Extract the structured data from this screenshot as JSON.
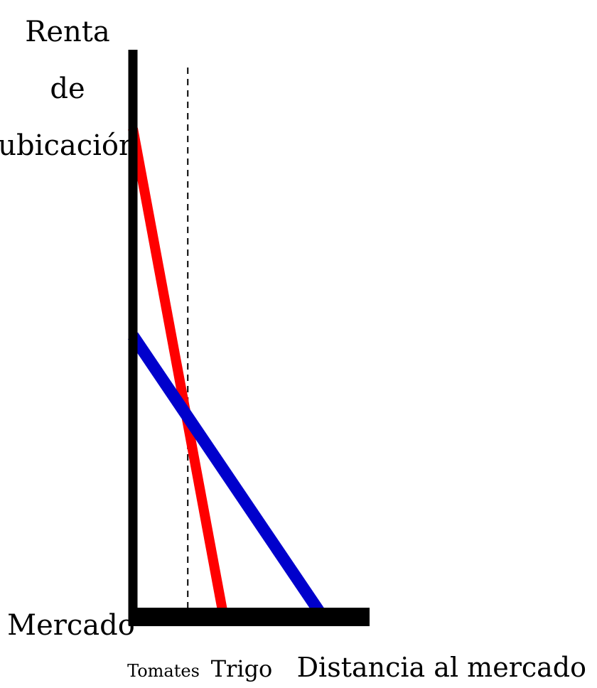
{
  "chart_data": {
    "type": "line",
    "title": "",
    "ylabel_lines": [
      "Renta",
      "de",
      "ubicación"
    ],
    "xlabel": "Distancia al mercado",
    "origin_label": "Mercado",
    "x_tick_labels": [
      "Tomates",
      "Trigo"
    ],
    "y_tick_labels": [],
    "grid": false,
    "legend": "none",
    "xlim": [
      0,
      10
    ],
    "ylim": [
      0,
      10
    ],
    "series": [
      {
        "color": "#ff0000",
        "points": [
          [
            0,
            9.9
          ],
          [
            4.3,
            0
          ]
        ]
      },
      {
        "color": "#0000cc",
        "points": [
          [
            0,
            5.7
          ],
          [
            9.0,
            0
          ]
        ]
      }
    ],
    "reference_line": {
      "x": 2.6,
      "style": "dashed",
      "color": "#000000"
    },
    "intersection": [
      2.6,
      4.0
    ]
  }
}
